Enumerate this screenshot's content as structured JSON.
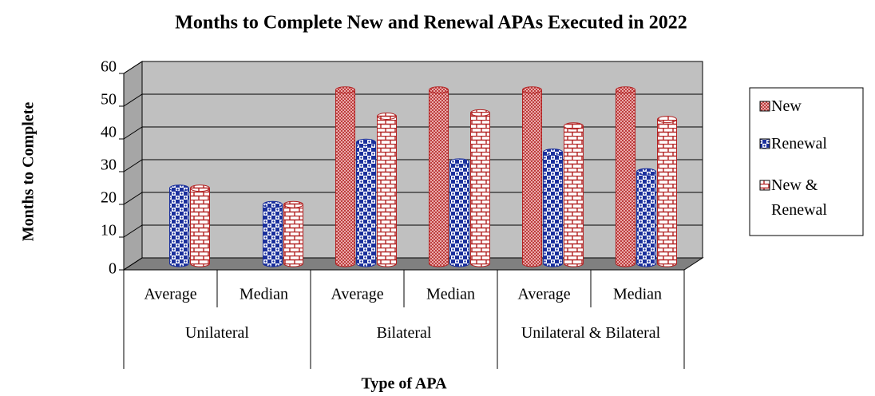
{
  "chart_data": {
    "type": "bar",
    "title": "Months to Complete New and Renewal APAs Executed in 2022",
    "xlabel": "Type of APA",
    "ylabel": "Months to Complete",
    "categories": [
      "Average",
      "Median",
      "Average",
      "Median",
      "Average",
      "Median"
    ],
    "category_groups": [
      "Unilateral",
      "Bilateral",
      "Unilateral & Bilateral"
    ],
    "series": [
      {
        "name": "New",
        "color": "#b22222",
        "pattern": "crosshatch",
        "values": [
          null,
          null,
          53,
          53,
          53,
          53
        ]
      },
      {
        "name": "Renewal",
        "color": "#1a2f9c",
        "pattern": "checker",
        "values": [
          23,
          18,
          37,
          31,
          34,
          28
        ]
      },
      {
        "name": "New & Renewal",
        "color": "#b22222",
        "pattern": "brick",
        "values": [
          23,
          18,
          45,
          46,
          42,
          44
        ]
      }
    ],
    "ylim": [
      0,
      60
    ],
    "yticks": [
      0,
      10,
      20,
      30,
      40,
      50,
      60
    ],
    "grid": true,
    "legend": "right"
  }
}
